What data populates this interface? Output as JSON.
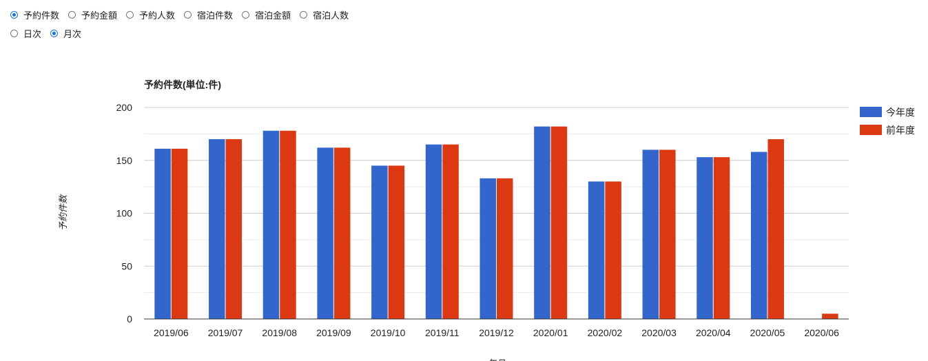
{
  "metric_options": [
    {
      "label": "予約件数",
      "checked": true
    },
    {
      "label": "予約金額",
      "checked": false
    },
    {
      "label": "予約人数",
      "checked": false
    },
    {
      "label": "宿泊件数",
      "checked": false
    },
    {
      "label": "宿泊金額",
      "checked": false
    },
    {
      "label": "宿泊人数",
      "checked": false
    }
  ],
  "period_options": [
    {
      "label": "日次",
      "checked": false
    },
    {
      "label": "月次",
      "checked": true
    }
  ],
  "chart_data": {
    "type": "bar",
    "title": "予約件数(単位:件)",
    "ylabel": "予約件数",
    "xlabel": "年月",
    "ylim": [
      0,
      200
    ],
    "yticks": [
      0,
      50,
      100,
      150,
      200
    ],
    "grid": true,
    "legend_position": "right",
    "categories": [
      "2019/06",
      "2019/07",
      "2019/08",
      "2019/09",
      "2019/10",
      "2019/11",
      "2019/12",
      "2020/01",
      "2020/02",
      "2020/03",
      "2020/04",
      "2020/05",
      "2020/06"
    ],
    "series": [
      {
        "name": "今年度",
        "color": "#3366cc",
        "values": [
          161,
          170,
          178,
          162,
          145,
          165,
          133,
          182,
          130,
          160,
          153,
          158,
          0
        ]
      },
      {
        "name": "前年度",
        "color": "#dc3912",
        "values": [
          161,
          170,
          178,
          162,
          145,
          165,
          133,
          182,
          130,
          160,
          153,
          170,
          5
        ]
      }
    ]
  }
}
